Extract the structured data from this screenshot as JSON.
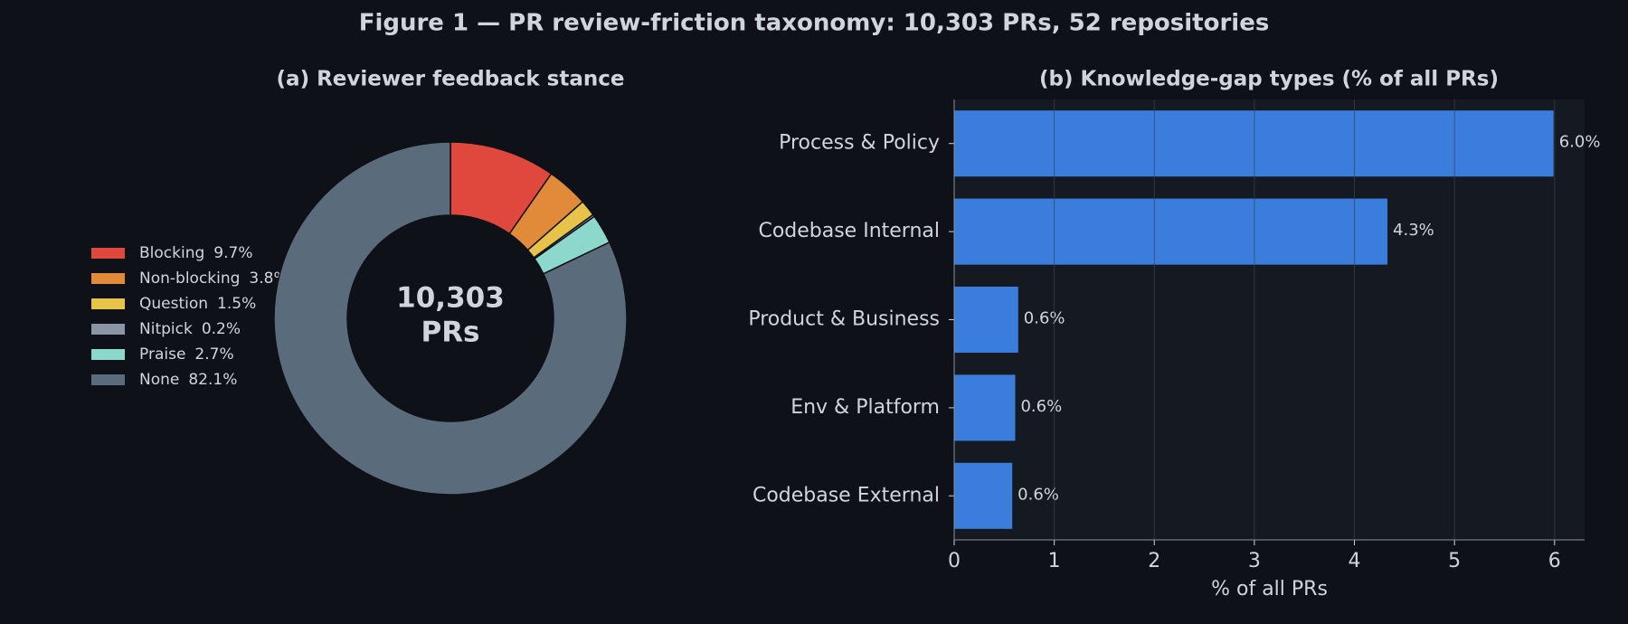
{
  "title": "Figure 1 — PR review-friction taxonomy: 10,303 PRs, 52 repositories",
  "chart_data": [
    {
      "type": "pie",
      "title": "(a) Reviewer feedback stance",
      "categories": [
        "Blocking",
        "Non-blocking",
        "Question",
        "Nitpick",
        "Praise",
        "None"
      ],
      "values": [
        9.7,
        3.8,
        1.5,
        0.2,
        2.7,
        82.1
      ],
      "value_labels": [
        "9.7%",
        "3.8%",
        "1.5%",
        "0.2%",
        "2.7%",
        "82.1%"
      ],
      "colors": [
        "#e0483e",
        "#e08a3a",
        "#e8c34a",
        "#8a96a4",
        "#8dd8cc",
        "#5a6b7c"
      ],
      "center_text": [
        "10,303",
        "PRs"
      ],
      "legend": "left"
    },
    {
      "type": "barh",
      "title": "(b) Knowledge-gap types (% of all PRs)",
      "categories": [
        "Process & Policy",
        "Codebase Internal",
        "Product & Business",
        "Env & Platform",
        "Codebase External"
      ],
      "values": [
        5.99,
        4.33,
        0.64,
        0.61,
        0.58
      ],
      "value_labels": [
        "6.0%",
        "4.3%",
        "0.6%",
        "0.6%",
        "0.6%"
      ],
      "color": "#3b7ddd",
      "xlim": [
        0,
        6.3
      ],
      "xticks": [
        0,
        1,
        2,
        3,
        4,
        5,
        6
      ],
      "xlabel": "% of all PRs",
      "grid": true
    }
  ]
}
